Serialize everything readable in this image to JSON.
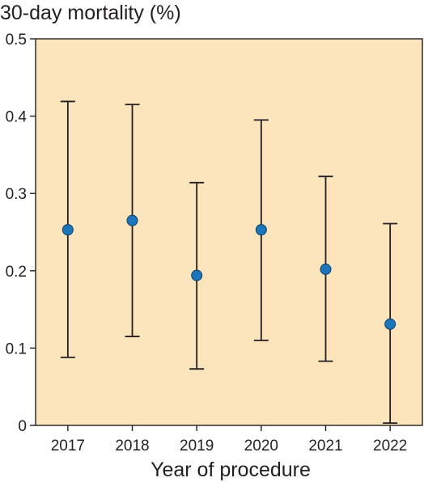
{
  "chart_data": {
    "type": "scatter",
    "title": "30-day mortality (%)",
    "xlabel": "Year of procedure",
    "ylabel": "",
    "ylim": [
      0,
      0.5
    ],
    "yticks": [
      "0",
      "0.1",
      "0.2",
      "0.3",
      "0.4",
      "0.5"
    ],
    "ytick_values": [
      0,
      0.1,
      0.2,
      0.3,
      0.4,
      0.5
    ],
    "categories": [
      "2017",
      "2018",
      "2019",
      "2020",
      "2021",
      "2022"
    ],
    "series": [
      {
        "values": [
          0.253,
          0.265,
          0.194,
          0.253,
          0.202,
          0.131
        ],
        "lower": [
          0.088,
          0.115,
          0.073,
          0.11,
          0.083,
          0.003
        ],
        "upper": [
          0.419,
          0.415,
          0.314,
          0.395,
          0.322,
          0.261
        ]
      }
    ],
    "grid": false,
    "legend": "none",
    "colors": {
      "background": "#fce5bd",
      "point": "#1b75bb",
      "errorbar": "#231f20",
      "axis": "#231f20"
    }
  }
}
